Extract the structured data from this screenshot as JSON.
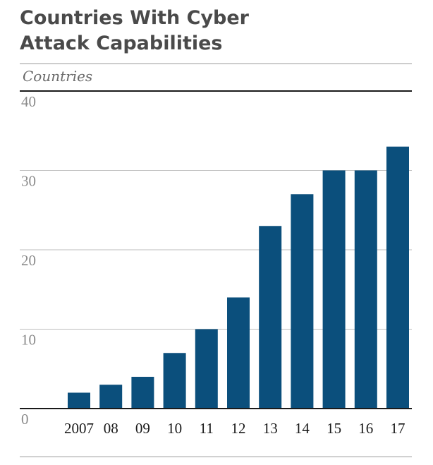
{
  "chart_data": {
    "type": "bar",
    "title_lines": [
      "Countries With Cyber",
      "Attack Capabilities"
    ],
    "ylabel": "Countries",
    "xlabel": "",
    "categories": [
      "2007",
      "08",
      "09",
      "10",
      "11",
      "12",
      "13",
      "14",
      "15",
      "16",
      "17"
    ],
    "values": [
      2,
      3,
      4,
      7,
      10,
      14,
      23,
      27,
      30,
      30,
      33
    ],
    "ylim": [
      0,
      40
    ],
    "yticks": [
      "0",
      "10",
      "20",
      "30",
      "40"
    ],
    "grid": true,
    "bar_color": "#0b4f7c"
  }
}
